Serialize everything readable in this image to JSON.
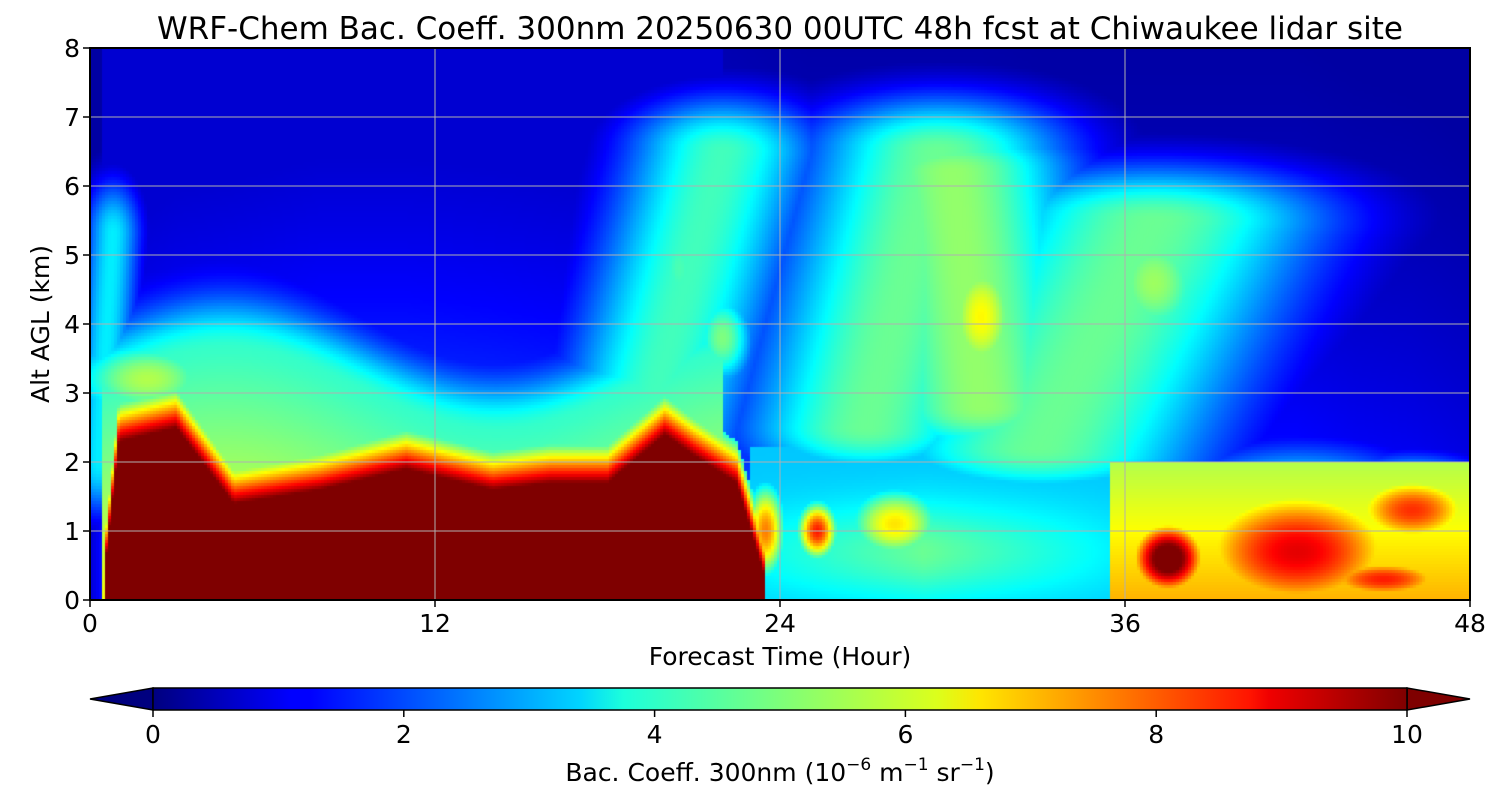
{
  "chart_data": {
    "type": "heatmap",
    "title": "WRF-Chem Bac. Coeff. 300nm  20250630 00UTC 48h fcst at Chiwaukee lidar site",
    "xlabel": "Forecast Time (Hour)",
    "ylabel": "Alt AGL (km)",
    "xlim": [
      0,
      48
    ],
    "ylim": [
      0,
      8
    ],
    "x_ticks": [
      "0",
      "12",
      "24",
      "36",
      "48"
    ],
    "y_ticks": [
      "0",
      "1",
      "2",
      "3",
      "4",
      "5",
      "6",
      "7",
      "8"
    ],
    "grid": true,
    "colormap": "jet",
    "colorbar": {
      "label_main": "Bac. Coeff. 300nm  (10",
      "exp1": "−6",
      "label_mid": " m",
      "exp2": "−1",
      "label_end": " sr",
      "exp3": "−1",
      "label_close": ")",
      "range": [
        0,
        10
      ],
      "ticks": [
        "0",
        "2",
        "4",
        "6",
        "8",
        "10"
      ],
      "extend": "both"
    },
    "times": [
      0,
      0.5,
      1,
      3,
      5,
      8,
      11,
      14,
      16,
      18,
      20,
      21,
      22.5,
      23.5,
      25,
      26,
      28,
      30,
      31,
      33,
      35,
      36,
      38,
      40,
      42,
      44,
      46,
      48
    ],
    "features": [
      {
        "kind": "base_band",
        "top_km": 0.8,
        "values": [
          0.8,
          1.5,
          2.2,
          2.5,
          2.6,
          2.8,
          2.8,
          2.7,
          2.6,
          2.5,
          2.5,
          2.6,
          2.4,
          2.2,
          2.0,
          2.0,
          2.0,
          2.0,
          2.0,
          1.8,
          1.8,
          1.8,
          1.8,
          1.8,
          1.8,
          1.6,
          1.5,
          1.3
        ]
      },
      {
        "kind": "aerosol_layer",
        "name": "boundary_layer_plume",
        "values_km": [
          0.1,
          0.4,
          2.3,
          2.5,
          1.4,
          1.6,
          1.9,
          1.6,
          1.7,
          1.7,
          2.4,
          2.1,
          1.7,
          0.3,
          0.1,
          0.1,
          0.1,
          0.1,
          0.1,
          0.1,
          0.1,
          1.2,
          1.1,
          0.8,
          1.2,
          1.6,
          1.6,
          1.5
        ],
        "peak_value": 11
      },
      {
        "kind": "blob",
        "t": 42,
        "z_km": 0.7,
        "value": 9,
        "width_h": 6,
        "height_km": 1.5
      },
      {
        "kind": "blob",
        "t": 46,
        "z_km": 1.3,
        "value": 8.3,
        "width_h": 3.5,
        "height_km": 0.8
      },
      {
        "kind": "blob",
        "t": 45,
        "z_km": 0.3,
        "value": 8.5,
        "width_h": 4,
        "height_km": 0.5
      },
      {
        "kind": "blob",
        "t": 37.5,
        "z_km": 0.6,
        "value": 11,
        "width_h": 2,
        "height_km": 0.8
      },
      {
        "kind": "blob",
        "t": 25.3,
        "z_km": 1.0,
        "value": 8.5,
        "width_h": 1.0,
        "height_km": 0.6
      },
      {
        "kind": "blob",
        "t": 28,
        "z_km": 1.1,
        "value": 6.5,
        "width_h": 2.5,
        "height_km": 0.8
      },
      {
        "kind": "blob",
        "t": 23.5,
        "z_km": 1.0,
        "value": 7.5,
        "width_h": 1.0,
        "height_km": 1.0
      },
      {
        "kind": "blob",
        "t": 31,
        "z_km": 4.1,
        "value": 6.3,
        "width_h": 2.0,
        "height_km": 1.5
      },
      {
        "kind": "blob",
        "t": 37,
        "z_km": 4.6,
        "value": 5.3,
        "width_h": 3.0,
        "height_km": 1.5
      },
      {
        "kind": "blob",
        "t": 20.5,
        "z_km": 4.8,
        "value": 4.5,
        "width_h": 1.5,
        "height_km": 1.5
      },
      {
        "kind": "blob",
        "t": 22,
        "z_km": 3.8,
        "value": 5.0,
        "width_h": 1.5,
        "height_km": 1.0
      },
      {
        "kind": "blob",
        "t": 2,
        "z_km": 3.2,
        "value": 5.5,
        "width_h": 4.0,
        "height_km": 0.9
      }
    ]
  }
}
